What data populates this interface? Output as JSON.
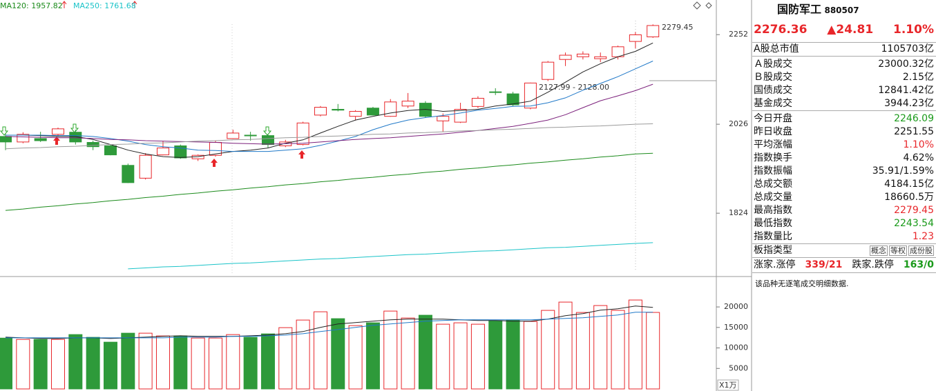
{
  "header": {
    "ma_labels": [
      {
        "name": "MA120",
        "value": 1957.82
      },
      {
        "name": "MA250",
        "value": 1761.68
      }
    ]
  },
  "chart_data": [
    {
      "type": "candlestick",
      "log": true,
      "ylim": [
        1694,
        2346
      ],
      "yticks": [
        1824,
        2026,
        2252
      ],
      "up_color": "#e8262a",
      "down_color": "#2e9a3a",
      "open": [
        1997,
        1984,
        1992,
        2002,
        2007,
        1983,
        1975,
        1930,
        1901,
        1954,
        1975,
        1945,
        1953,
        1992,
        2000,
        1999,
        1975,
        1978,
        2048,
        2062,
        2045,
        2065,
        2045,
        2070,
        2077,
        2034,
        2031,
        2069,
        2105,
        2100,
        2065,
        2136,
        2187,
        2194,
        2189,
        2194,
        2234,
        2246.09
      ],
      "high": [
        2003,
        2007,
        2008,
        2018,
        2013,
        1987,
        1978,
        1934,
        1958,
        1986,
        1978,
        1955,
        1987,
        2013,
        2008,
        2003,
        1989,
        2032,
        2070,
        2075,
        2060,
        2068,
        2087,
        2102,
        2082,
        2052,
        2078,
        2094,
        2114,
        2105,
        2128,
        2183,
        2205,
        2208,
        2205,
        2223,
        2259,
        2279.45
      ],
      "low": [
        1965,
        1981,
        1984,
        1997,
        1978,
        1965,
        1953,
        1890,
        1898,
        1953,
        1945,
        1940,
        1950,
        1991,
        1987,
        1970,
        1972,
        1976,
        2045,
        2057,
        2035,
        2047,
        2044,
        2065,
        2042,
        2008,
        2029,
        2065,
        2097,
        2070,
        2062,
        2132,
        2170,
        2187,
        2180,
        2187,
        2216,
        2243.54
      ],
      "close": [
        1984,
        2002,
        1987,
        2015,
        1984,
        1973,
        1954,
        1891,
        1953,
        1970,
        1947,
        1953,
        1983,
        2005,
        1999,
        1978,
        1984,
        2029,
        2067,
        2060,
        2057,
        2048,
        2080,
        2082,
        2045,
        2045,
        2062,
        2089,
        2104,
        2073,
        2127,
        2180,
        2198,
        2201,
        2194,
        2220,
        2251.55,
        2276.36
      ],
      "lines": [
        {
          "color": "#222222",
          "values": [
            2000,
            2000,
            1999,
            1997,
            1997,
            1990,
            1978,
            1965,
            1956,
            1950,
            1948,
            1950,
            1956,
            1962,
            1965,
            1970,
            1981,
            1989,
            2005,
            2021,
            2036,
            2045,
            2053,
            2059,
            2062,
            2057,
            2059,
            2062,
            2070,
            2075,
            2082,
            2104,
            2129,
            2155,
            2176,
            2194,
            2208,
            2230
          ]
        },
        {
          "color": "#1f78c8",
          "values": [
            2000,
            2000,
            2000,
            1999,
            1999,
            1997,
            1992,
            1986,
            1978,
            1973,
            1970,
            1965,
            1964,
            1962,
            1962,
            1962,
            1965,
            1968,
            1976,
            1986,
            1997,
            2013,
            2026,
            2036,
            2042,
            2047,
            2053,
            2060,
            2064,
            2069,
            2070,
            2078,
            2090,
            2109,
            2126,
            2143,
            2163,
            2183
          ]
        },
        {
          "color": "#7b1f7b",
          "values": [
            1997,
            1996,
            1995,
            1994,
            1994,
            1992,
            1990,
            1989,
            1987,
            1986,
            1985,
            1984,
            1983,
            1981,
            1980,
            1979,
            1980,
            1981,
            1984,
            1987,
            1990,
            1992,
            1994,
            1997,
            2000,
            2003,
            2007,
            2011,
            2016,
            2021,
            2028,
            2036,
            2049,
            2066,
            2083,
            2095,
            2108,
            2124
          ]
        },
        {
          "color": "#9a9a9a",
          "values": [
            1968,
            1970,
            1971,
            1973,
            1974,
            1976,
            1978,
            1979,
            1981,
            1982,
            1984,
            1986,
            1987,
            1989,
            1990,
            1992,
            1994,
            1995,
            1997,
            1998,
            2000,
            2002,
            2003,
            2005,
            2006,
            2008,
            2010,
            2011,
            2013,
            2014,
            2016,
            2018,
            2019,
            2021,
            2022,
            2024,
            2026,
            2027
          ]
        },
        {
          "name": "MA120",
          "color": "#1a8a1a",
          "values": [
            1830,
            1833,
            1837,
            1840,
            1844,
            1847,
            1851,
            1854,
            1858,
            1861,
            1865,
            1868,
            1872,
            1875,
            1879,
            1882,
            1886,
            1889,
            1893,
            1896,
            1900,
            1903,
            1907,
            1910,
            1914,
            1917,
            1921,
            1924,
            1928,
            1931,
            1935,
            1938,
            1942,
            1945,
            1949,
            1952,
            1956,
            1957.82
          ]
        },
        {
          "name": "MA250",
          "color": "#19c3c8",
          "values": [
            null,
            null,
            null,
            null,
            null,
            null,
            null,
            1708,
            1710,
            1712,
            1713,
            1715,
            1717,
            1719,
            1720,
            1722,
            1724,
            1726,
            1728,
            1729,
            1731,
            1733,
            1735,
            1737,
            1738,
            1740,
            1742,
            1744,
            1745,
            1747,
            1749,
            1751,
            1752,
            1754,
            1756,
            1758,
            1760,
            1761.68
          ]
        }
      ],
      "annotations": [
        "2127.99 - 2128.00"
      ]
    },
    {
      "type": "bar",
      "ylim": [
        0,
        27080
      ],
      "yticks": [
        5000,
        10000,
        15000,
        20000
      ],
      "unit": "X1万",
      "values": [
        12400,
        12080,
        12080,
        12080,
        13260,
        12590,
        11410,
        13600,
        13600,
        12920,
        12920,
        12420,
        12420,
        13260,
        12590,
        13430,
        14950,
        16800,
        18820,
        17140,
        15450,
        16130,
        18990,
        17300,
        17980,
        15790,
        16130,
        15790,
        16630,
        16800,
        16460,
        19160,
        21180,
        18650,
        20340,
        19160,
        21690,
        18660.5
      ],
      "lines": [
        {
          "color": "#222222",
          "values": [
            12640,
            12470,
            12300,
            12300,
            12470,
            12470,
            12300,
            12470,
            12640,
            12810,
            12970,
            12810,
            12810,
            12810,
            12970,
            13140,
            13480,
            13990,
            15000,
            15840,
            16180,
            16510,
            16850,
            17020,
            17020,
            17020,
            16850,
            16680,
            16680,
            16510,
            16510,
            17020,
            17860,
            18370,
            19210,
            19550,
            20220,
            19880
          ]
        },
        {
          "color": "#1f78c8",
          "values": [
            12470,
            12470,
            12470,
            12470,
            12470,
            12470,
            12470,
            12470,
            12470,
            12470,
            12640,
            12640,
            12640,
            12810,
            12810,
            12970,
            13140,
            13480,
            13990,
            14490,
            15000,
            15500,
            15840,
            16180,
            16510,
            16680,
            16850,
            16850,
            16850,
            16850,
            16850,
            17020,
            17190,
            17360,
            17690,
            18030,
            18700,
            18700
          ]
        }
      ]
    }
  ],
  "panel": {
    "title": "国防军工",
    "code": "880507",
    "price": "2276.36",
    "change": "▲24.81",
    "change_pct": "1.10%",
    "rows": [
      [
        "A股总市值",
        "1105703亿"
      ],
      [
        "Ａ股成交",
        "23000.32亿"
      ],
      [
        "Ｂ股成交",
        "2.15亿"
      ],
      [
        "国债成交",
        "12841.42亿"
      ],
      [
        "基金成交",
        "3944.23亿"
      ],
      [
        "今日开盘",
        "2246.09"
      ],
      [
        "昨日收盘",
        "2251.55"
      ],
      [
        "平均涨幅",
        "1.10%"
      ],
      [
        "指数换手",
        "4.62%"
      ],
      [
        "指数振幅",
        "35.91/1.59%"
      ],
      [
        "总成交额",
        "4184.15亿"
      ],
      [
        "总成交量",
        "18660.5万"
      ],
      [
        "最高指数",
        "2279.45"
      ],
      [
        "最低指数",
        "2243.54"
      ],
      [
        "指数量比",
        "1.23"
      ]
    ],
    "type_label": "板指类型",
    "type_tags": [
      "概念",
      "等权",
      "成份股"
    ],
    "breadth": [
      "涨家.涨停",
      "339/21",
      "跌家.跌停",
      "163/0"
    ],
    "note": "该品种无逐笔成交明细数据."
  }
}
